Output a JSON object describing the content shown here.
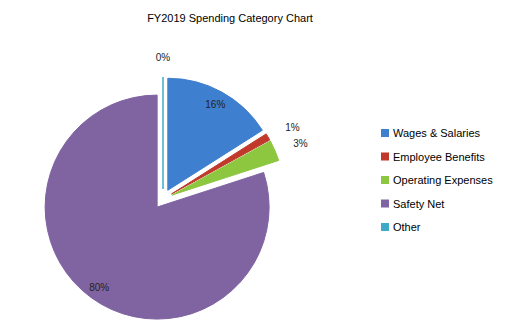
{
  "chart_data": {
    "type": "pie",
    "title": "FY2019 Spending Category Chart",
    "categories": [
      "Wages & Salaries",
      "Employee Benefits",
      "Operating Expenses",
      "Safety Net",
      "Other"
    ],
    "values": [
      16,
      1,
      3,
      80,
      0
    ],
    "value_labels": [
      "16%",
      "1%",
      "3%",
      "80%",
      "0%"
    ],
    "colors": [
      "#3f7fcf",
      "#c0392b",
      "#8dc63f",
      "#8064a2",
      "#3fa9c9"
    ],
    "data_labels": true,
    "legend": "right"
  }
}
